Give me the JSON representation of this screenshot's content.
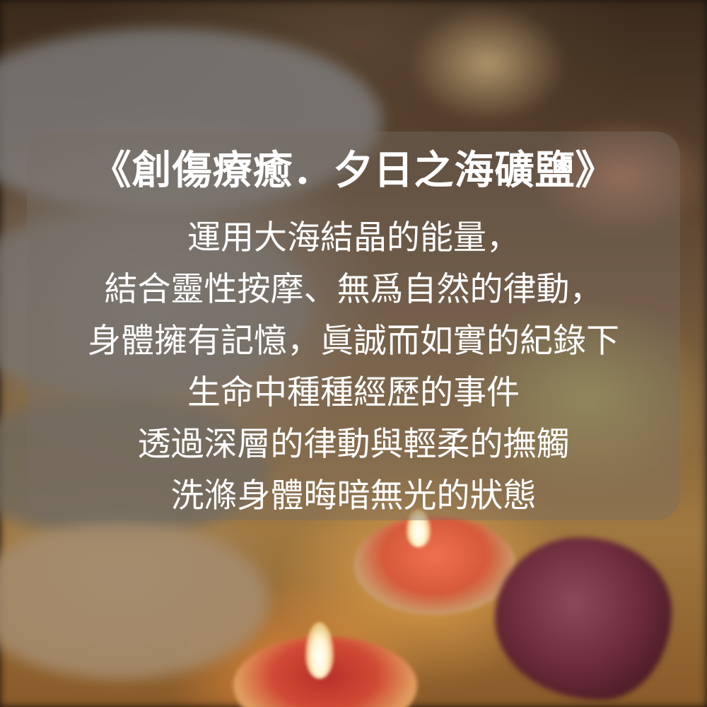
{
  "title": "《創傷療癒．夕日之海礦鹽》",
  "lines": [
    "運用大海結晶的能量，",
    "結合靈性按摩、無爲自然的律動，",
    "身體擁有記憶，眞誠而如實的紀錄下",
    "生命中種種經歷的事件",
    "透過深層的律動與輕柔的撫觸",
    "洗滌身體晦暗無光的狀態"
  ],
  "colors": {
    "text": "#ffffff",
    "panel": "rgba(120,110,100,0.42)"
  }
}
